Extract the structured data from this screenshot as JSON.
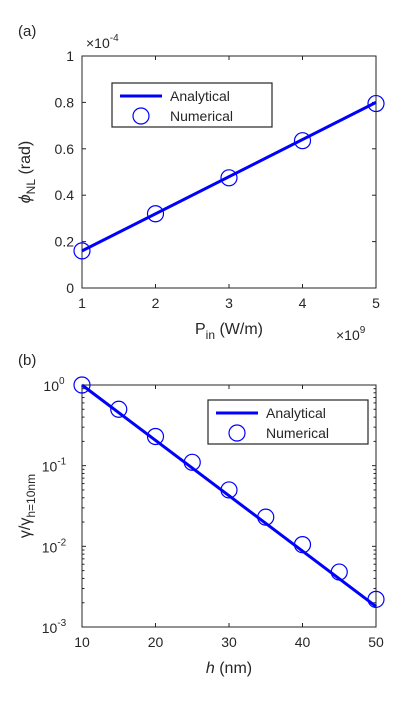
{
  "chart_data": [
    {
      "panel_label": "(a)",
      "type": "line",
      "xlabel": {
        "main": "P",
        "sub": "in",
        "rest": " (W/m)"
      },
      "ylabel": {
        "main": "ϕ",
        "sub": "NL",
        "rest": " (rad)"
      },
      "xlim": [
        1,
        5
      ],
      "ylim": [
        0,
        1
      ],
      "x_ticks": [
        1,
        2,
        3,
        4,
        5
      ],
      "y_ticks": [
        0,
        0.2,
        0.4,
        0.6,
        0.8,
        1
      ],
      "x_multiplier": {
        "base": "×10",
        "exp": "9"
      },
      "y_multiplier": {
        "base": "×10",
        "exp": "-4"
      },
      "legend_position": "top-left",
      "series": [
        {
          "name": "Analytical",
          "style": "line",
          "color": "#0000ff",
          "x": [
            1,
            5
          ],
          "y": [
            0.16,
            0.8
          ]
        },
        {
          "name": "Numerical",
          "style": "circle",
          "color": "#0000ff",
          "x": [
            1,
            2,
            3,
            4,
            5
          ],
          "y": [
            0.16,
            0.32,
            0.475,
            0.635,
            0.795
          ]
        }
      ]
    },
    {
      "panel_label": "(b)",
      "type": "line",
      "yscale": "log",
      "xlabel": {
        "main": "h",
        "rest": " (nm)"
      },
      "ylabel": {
        "text": "γ/γ",
        "sub": "h=10nm"
      },
      "xlim": [
        10,
        50
      ],
      "ylim": [
        0.001,
        1
      ],
      "x_ticks": [
        10,
        20,
        30,
        40,
        50
      ],
      "y_ticks": [
        {
          "base": "10",
          "exp": "0",
          "value": 1
        },
        {
          "base": "10",
          "exp": "-1",
          "value": 0.1
        },
        {
          "base": "10",
          "exp": "-2",
          "value": 0.01
        },
        {
          "base": "10",
          "exp": "-3",
          "value": 0.001
        }
      ],
      "legend_position": "top-right",
      "series": [
        {
          "name": "Analytical",
          "style": "line",
          "color": "#0000ff",
          "x": [
            10,
            50
          ],
          "y": [
            1,
            0.0018
          ]
        },
        {
          "name": "Numerical",
          "style": "circle",
          "color": "#0000ff",
          "x": [
            10,
            15,
            20,
            25,
            30,
            35,
            40,
            45,
            50
          ],
          "y": [
            1,
            0.5,
            0.23,
            0.11,
            0.05,
            0.023,
            0.0105,
            0.0048,
            0.0022
          ]
        }
      ]
    }
  ]
}
